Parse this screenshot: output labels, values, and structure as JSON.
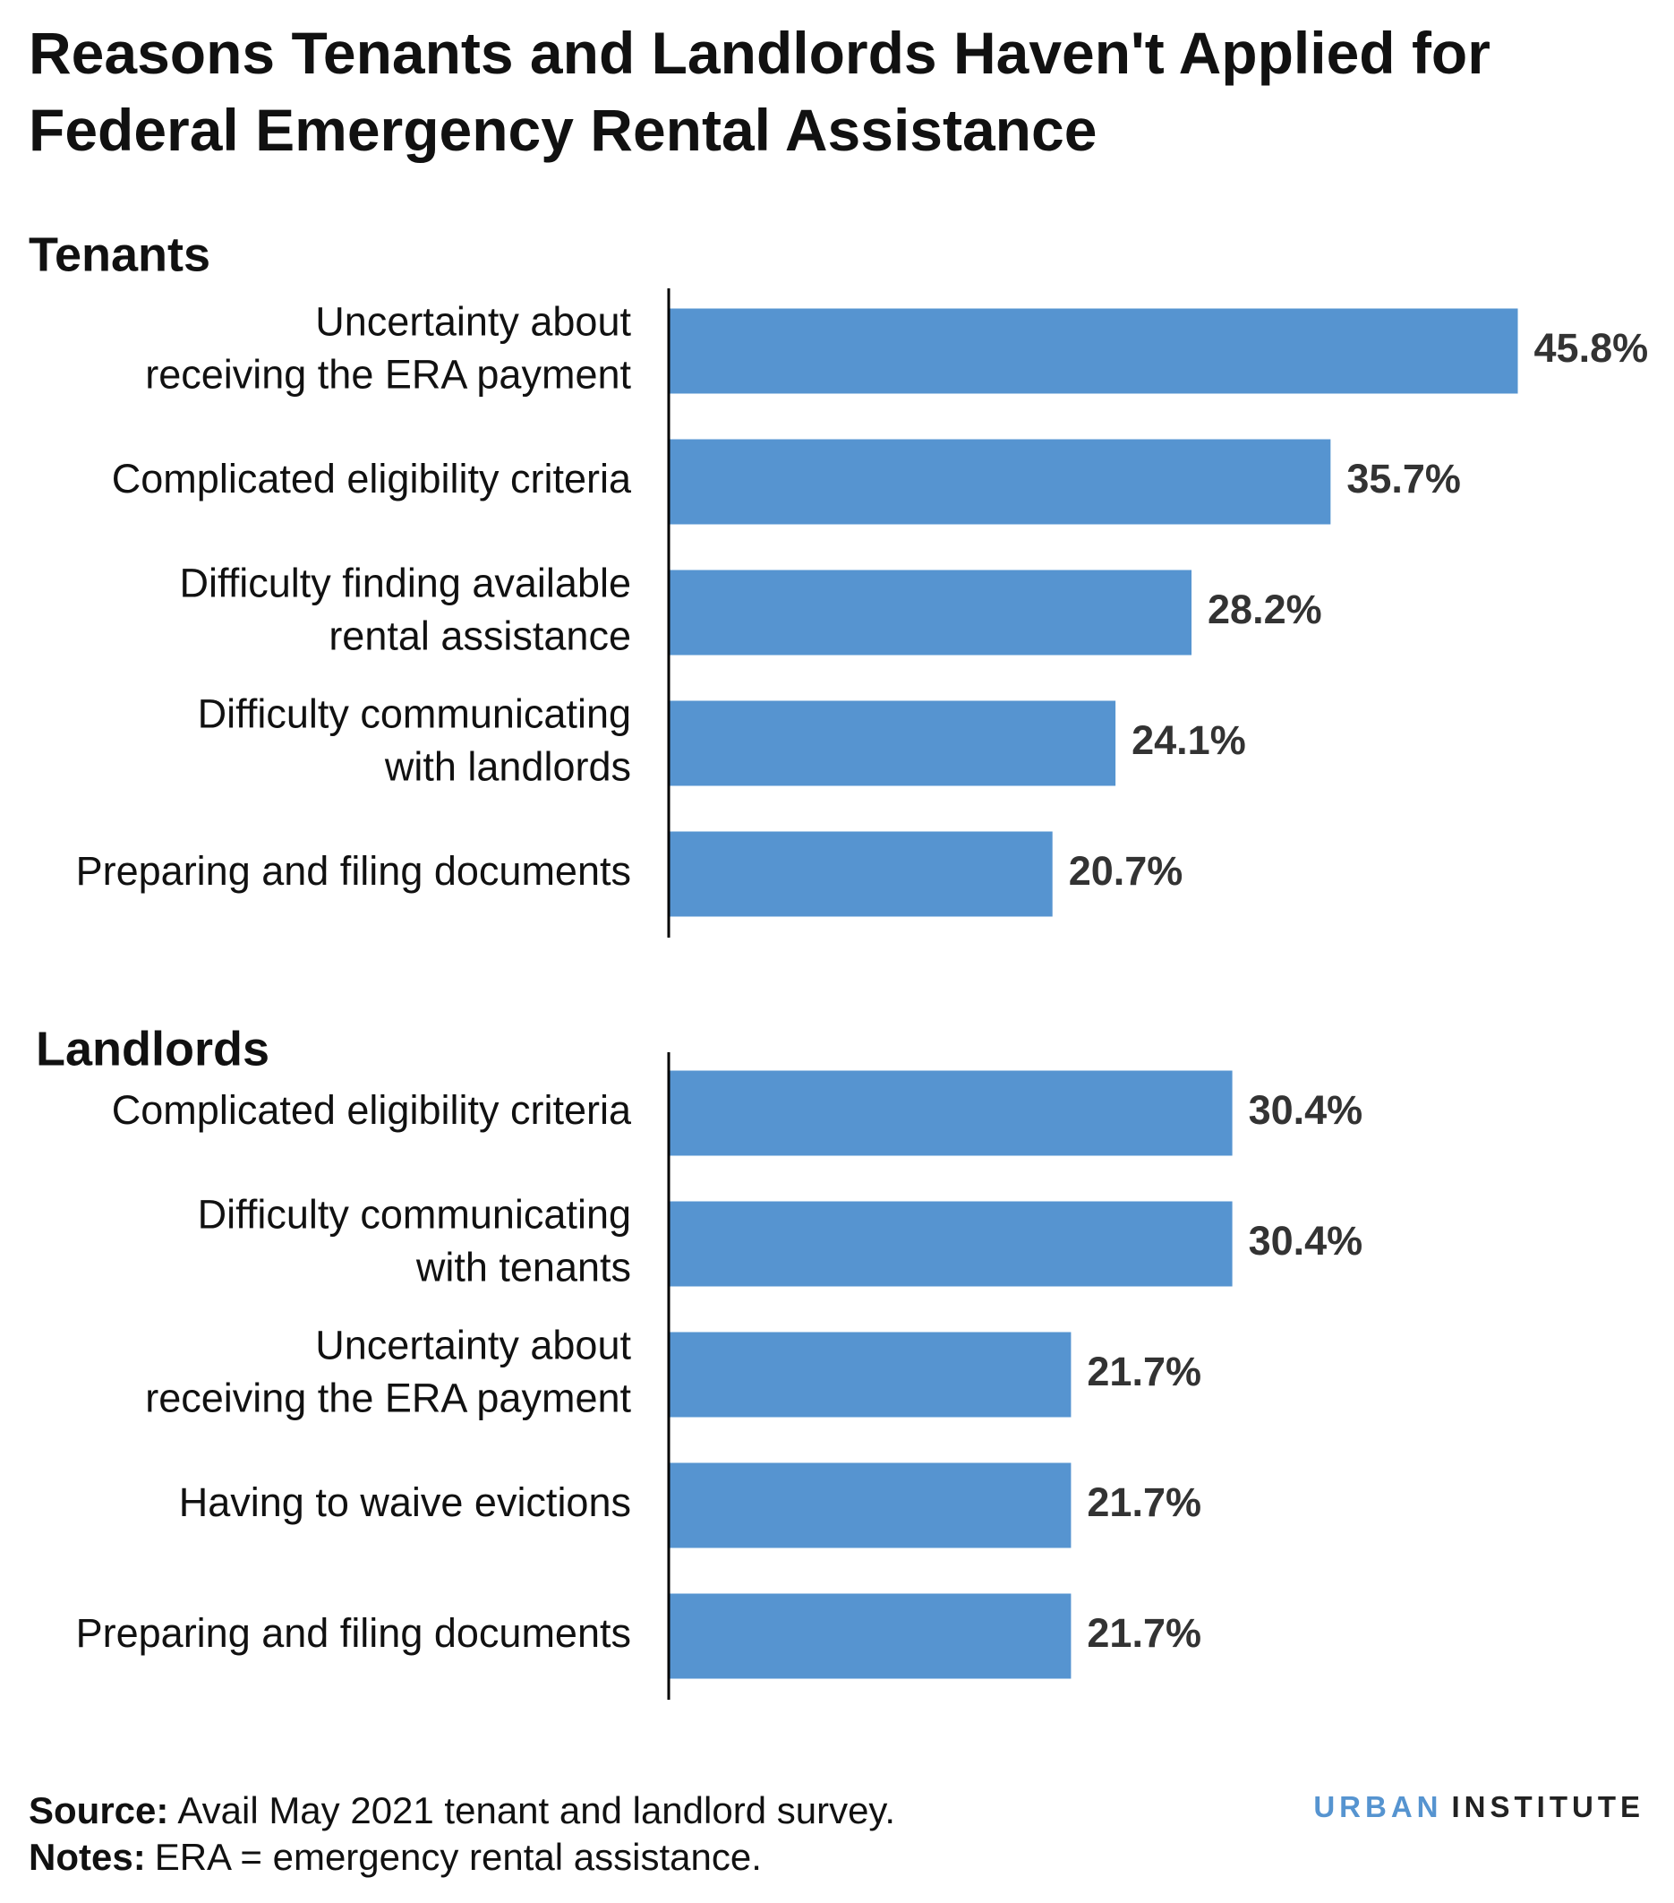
{
  "title": "Reasons Tenants and Landlords Haven't Applied for\nFederal Emergency Rental Assistance",
  "chart_data": [
    {
      "type": "bar",
      "orientation": "horizontal",
      "title": "Tenants",
      "color": "#5694d0",
      "categories": [
        "Uncertainty about\nreceiving the ERA payment",
        "Complicated eligibility criteria",
        "Difficulty finding available\nrental assistance",
        "Difficulty communicating\nwith landlords",
        "Preparing and filing documents"
      ],
      "values": [
        45.8,
        35.7,
        28.2,
        24.1,
        20.7
      ],
      "value_labels": [
        "45.8%",
        "35.7%",
        "28.2%",
        "24.1%",
        "20.7%"
      ]
    },
    {
      "type": "bar",
      "orientation": "horizontal",
      "title": "Landlords",
      "color": "#5694d0",
      "categories": [
        "Complicated eligibility criteria",
        "Difficulty communicating\nwith tenants",
        "Uncertainty about\nreceiving the ERA payment",
        "Having to waive evictions",
        "Preparing and filing documents"
      ],
      "values": [
        30.4,
        30.4,
        21.7,
        21.7,
        21.7
      ],
      "value_labels": [
        "30.4%",
        "30.4%",
        "21.7%",
        "21.7%",
        "21.7%"
      ]
    }
  ],
  "source": {
    "label": "Source:",
    "text": "Avail May 2021 tenant and landlord survey."
  },
  "notes": {
    "label": "Notes:",
    "text": "ERA = emergency rental assistance."
  },
  "logo": {
    "first": "URBAN",
    "second": "INSTITUTE"
  }
}
